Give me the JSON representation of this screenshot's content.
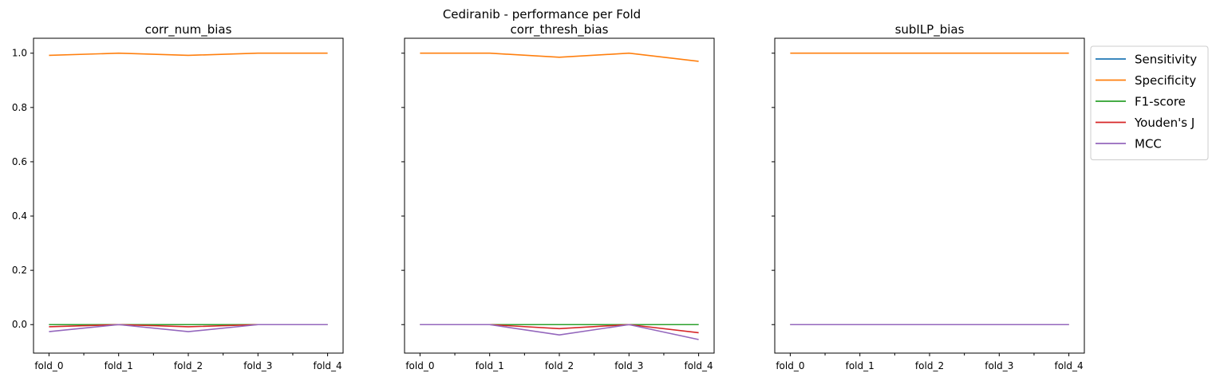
{
  "suptitle": "Cediranib - performance per Fold",
  "colors": {
    "Sensitivity": "#1f77b4",
    "Specificity": "#ff7f0e",
    "F1-score": "#2ca02c",
    "Youden's J": "#d62728",
    "MCC": "#9467bd"
  },
  "legend": {
    "placement": "outside-right-top",
    "entries": [
      "Sensitivity",
      "Specificity",
      "F1-score",
      "Youden's J",
      "MCC"
    ]
  },
  "chart_data": [
    {
      "type": "line",
      "title": "corr_num_bias",
      "categories": [
        "fold_0",
        "fold_1",
        "fold_2",
        "fold_3",
        "fold_4"
      ],
      "ylim": [
        -0.105,
        1.055
      ],
      "yticks": [
        "0.0",
        "0.2",
        "0.4",
        "0.6",
        "0.8",
        "1.0"
      ],
      "show_ytick_labels": true,
      "series": [
        {
          "name": "Sensitivity",
          "values": [
            0.0,
            0.0,
            0.0,
            0.0,
            0.0
          ]
        },
        {
          "name": "Specificity",
          "values": [
            0.992,
            1.0,
            0.992,
            1.0,
            1.0
          ]
        },
        {
          "name": "F1-score",
          "values": [
            0.0,
            0.0,
            0.0,
            0.0,
            0.0
          ]
        },
        {
          "name": "Youden's J",
          "values": [
            -0.008,
            0.0,
            -0.008,
            0.0,
            0.0
          ]
        },
        {
          "name": "MCC",
          "values": [
            -0.026,
            0.0,
            -0.026,
            0.0,
            0.0
          ]
        }
      ]
    },
    {
      "type": "line",
      "title": "corr_thresh_bias",
      "categories": [
        "fold_0",
        "fold_1",
        "fold_2",
        "fold_3",
        "fold_4"
      ],
      "ylim": [
        -0.105,
        1.055
      ],
      "yticks": [
        "0.0",
        "0.2",
        "0.4",
        "0.6",
        "0.8",
        "1.0"
      ],
      "show_ytick_labels": false,
      "series": [
        {
          "name": "Sensitivity",
          "values": [
            0.0,
            0.0,
            0.0,
            0.0,
            0.0
          ]
        },
        {
          "name": "Specificity",
          "values": [
            1.0,
            1.0,
            0.985,
            1.0,
            0.97
          ]
        },
        {
          "name": "F1-score",
          "values": [
            0.0,
            0.0,
            0.0,
            0.0,
            0.0
          ]
        },
        {
          "name": "Youden's J",
          "values": [
            0.0,
            0.0,
            -0.015,
            0.0,
            -0.03
          ]
        },
        {
          "name": "MCC",
          "values": [
            0.0,
            0.0,
            -0.038,
            0.0,
            -0.055
          ]
        }
      ]
    },
    {
      "type": "line",
      "title": "subILP_bias",
      "categories": [
        "fold_0",
        "fold_1",
        "fold_2",
        "fold_3",
        "fold_4"
      ],
      "ylim": [
        -0.105,
        1.055
      ],
      "yticks": [
        "0.0",
        "0.2",
        "0.4",
        "0.6",
        "0.8",
        "1.0"
      ],
      "show_ytick_labels": false,
      "series": [
        {
          "name": "Sensitivity",
          "values": [
            0.0,
            0.0,
            0.0,
            0.0,
            0.0
          ]
        },
        {
          "name": "Specificity",
          "values": [
            1.0,
            1.0,
            1.0,
            1.0,
            1.0
          ]
        },
        {
          "name": "F1-score",
          "values": [
            0.0,
            0.0,
            0.0,
            0.0,
            0.0
          ]
        },
        {
          "name": "Youden's J",
          "values": [
            0.0,
            0.0,
            0.0,
            0.0,
            0.0
          ]
        },
        {
          "name": "MCC",
          "values": [
            0.0,
            0.0,
            0.0,
            0.0,
            0.0
          ]
        }
      ]
    }
  ]
}
